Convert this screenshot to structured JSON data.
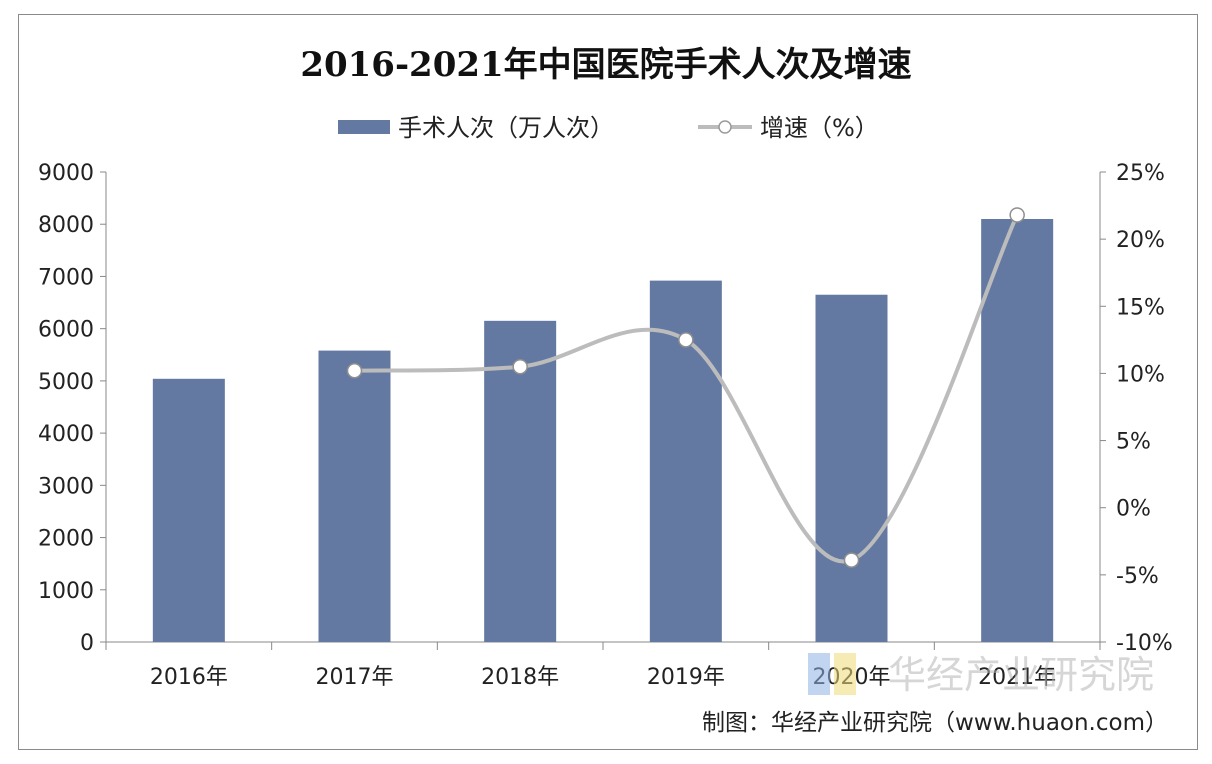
{
  "chart_data": {
    "type": "bar",
    "title": "2016-2021年中国医院手术人次及增速",
    "categories": [
      "2016年",
      "2017年",
      "2018年",
      "2019年",
      "2020年",
      "2021年"
    ],
    "series": [
      {
        "name": "手术人次（万人次）",
        "type": "bar",
        "axis": "left",
        "color": "#6379a1",
        "values": [
          5040,
          5580,
          6150,
          6920,
          6650,
          8100
        ]
      },
      {
        "name": "增速（%）",
        "type": "line",
        "axis": "right",
        "color": "#bcbcbc",
        "values": [
          null,
          10.2,
          10.5,
          12.5,
          -3.9,
          21.8
        ]
      }
    ],
    "y_left": {
      "min": 0,
      "max": 9000,
      "step": 1000,
      "ticks": [
        "0",
        "1000",
        "2000",
        "3000",
        "4000",
        "5000",
        "6000",
        "7000",
        "8000",
        "9000"
      ]
    },
    "y_right": {
      "min": -10,
      "max": 25,
      "step": 5,
      "ticks": [
        "-10%",
        "-5%",
        "0%",
        "5%",
        "10%",
        "15%",
        "20%",
        "25%"
      ]
    },
    "legend_position": "top-center",
    "grid": false
  },
  "watermark": "华经产业研究院",
  "source": "制图：华经产业研究院（www.huaon.com）"
}
